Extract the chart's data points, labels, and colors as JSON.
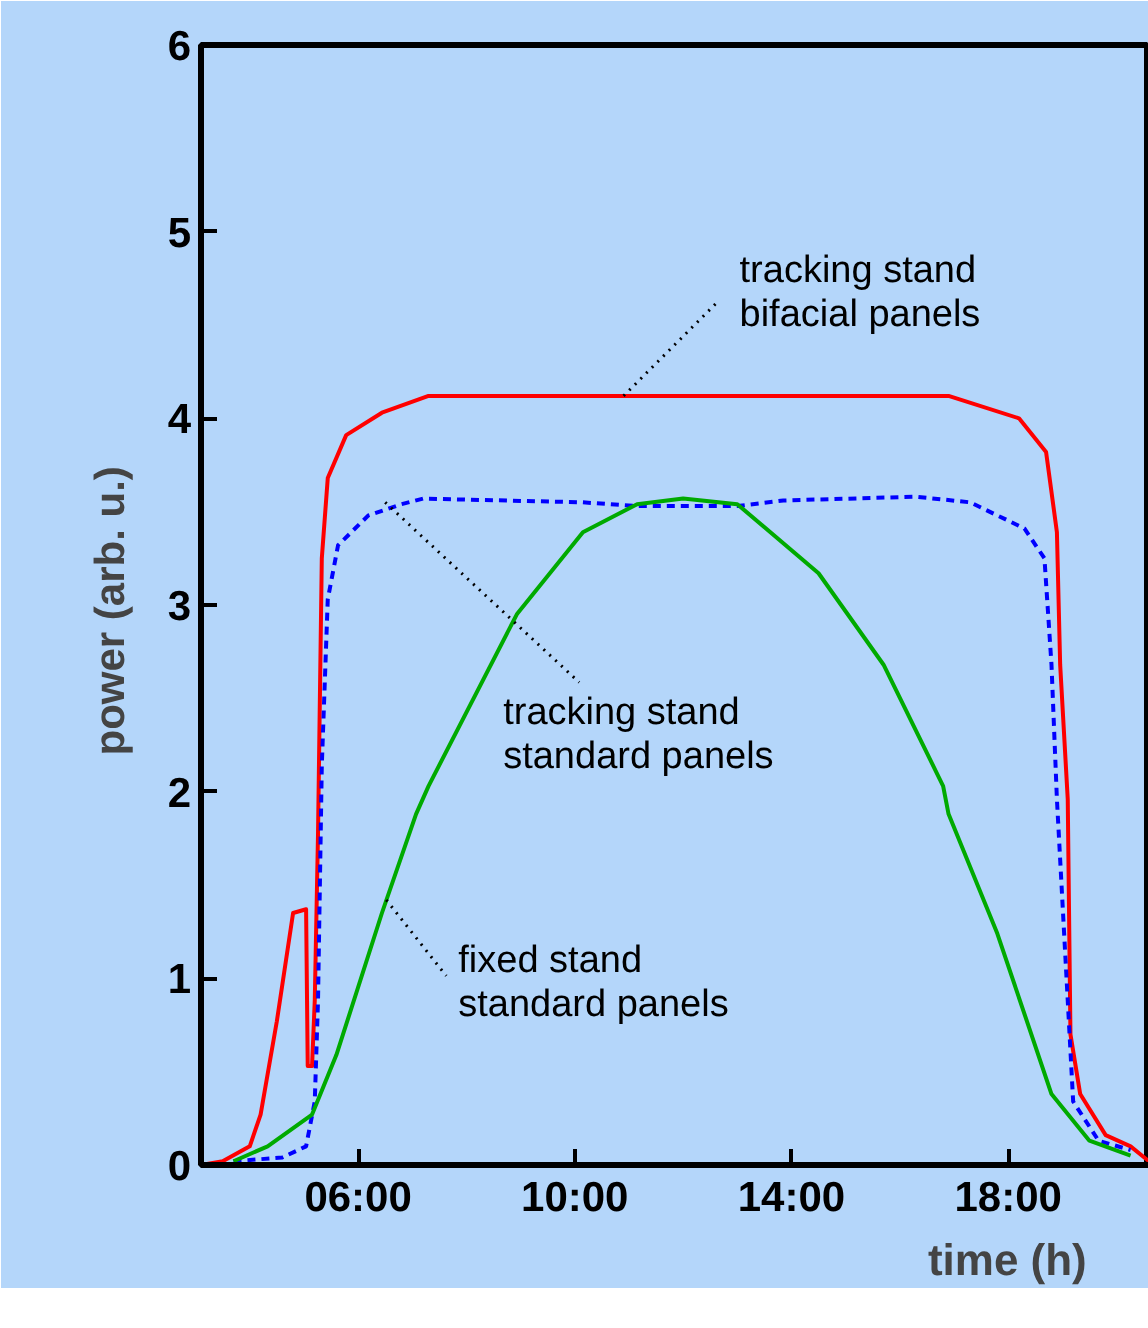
{
  "chart_data": {
    "type": "line",
    "xlabel": "time  (h)",
    "ylabel": "power  (arb. u.)",
    "xlim": [
      3.1,
      20.6
    ],
    "ylim": [
      0,
      6
    ],
    "xticks": [
      {
        "value": 6,
        "label": "06:00"
      },
      {
        "value": 10,
        "label": "10:00"
      },
      {
        "value": 14,
        "label": "14:00"
      },
      {
        "value": 18,
        "label": "18:00"
      }
    ],
    "yticks": [
      0,
      1,
      2,
      3,
      4,
      5,
      6
    ],
    "grid": false,
    "series": [
      {
        "color": "#ff0000",
        "line_style": "solid",
        "x": [
          3.1,
          3.5,
          4.0,
          4.2,
          4.5,
          4.8,
          5.04,
          5.07,
          5.15,
          5.2,
          5.26,
          5.33,
          5.44,
          5.78,
          6.44,
          7.3,
          16.9,
          18.2,
          18.7,
          18.9,
          18.96,
          19.1,
          19.15,
          19.33,
          19.8,
          20.26,
          20.6
        ],
        "values": [
          0,
          0.02,
          0.1,
          0.27,
          0.77,
          1.35,
          1.37,
          0.53,
          0.53,
          0.88,
          1.77,
          3.25,
          3.68,
          3.91,
          4.03,
          4.12,
          4.12,
          4.0,
          3.82,
          3.39,
          2.68,
          1.96,
          0.7,
          0.38,
          0.16,
          0.1,
          0.02
        ]
      },
      {
        "color": "#0000ff",
        "line_style": "dashed",
        "x": [
          3.7,
          4.6,
          5.04,
          5.2,
          5.26,
          5.33,
          5.44,
          5.63,
          6.19,
          6.8,
          7.2,
          10.15,
          11.15,
          13.0,
          13.85,
          16.3,
          17.3,
          18.3,
          18.67,
          18.8,
          18.9,
          19.1,
          19.2,
          19.67,
          20.26
        ],
        "values": [
          0.02,
          0.04,
          0.1,
          0.34,
          0.88,
          2.14,
          3.03,
          3.32,
          3.48,
          3.54,
          3.57,
          3.55,
          3.53,
          3.53,
          3.56,
          3.58,
          3.55,
          3.41,
          3.25,
          2.68,
          1.96,
          0.88,
          0.34,
          0.13,
          0.08
        ]
      },
      {
        "color": "#00aa00",
        "line_style": "solid",
        "x": [
          3.7,
          4.33,
          5.15,
          5.6,
          6.44,
          7.07,
          7.3,
          8.93,
          10.15,
          11.15,
          12.0,
          13.0,
          14.5,
          15.7,
          16.8,
          16.9,
          17.8,
          18.8,
          19.5,
          20.26
        ],
        "values": [
          0.02,
          0.1,
          0.27,
          0.59,
          1.35,
          1.88,
          2.03,
          2.95,
          3.39,
          3.54,
          3.57,
          3.54,
          3.17,
          2.68,
          2.03,
          1.88,
          1.24,
          0.38,
          0.13,
          0.05
        ]
      }
    ],
    "annotations": [
      {
        "text": "tracking stand\nbifacial panels",
        "x": 10.9,
        "y": 4.12
      },
      {
        "text": "tracking stand\nstandard panels",
        "x": 6.5,
        "y": 3.55
      },
      {
        "text": "fixed stand\nstandard panels",
        "x": 6.52,
        "y": 1.42
      }
    ]
  }
}
